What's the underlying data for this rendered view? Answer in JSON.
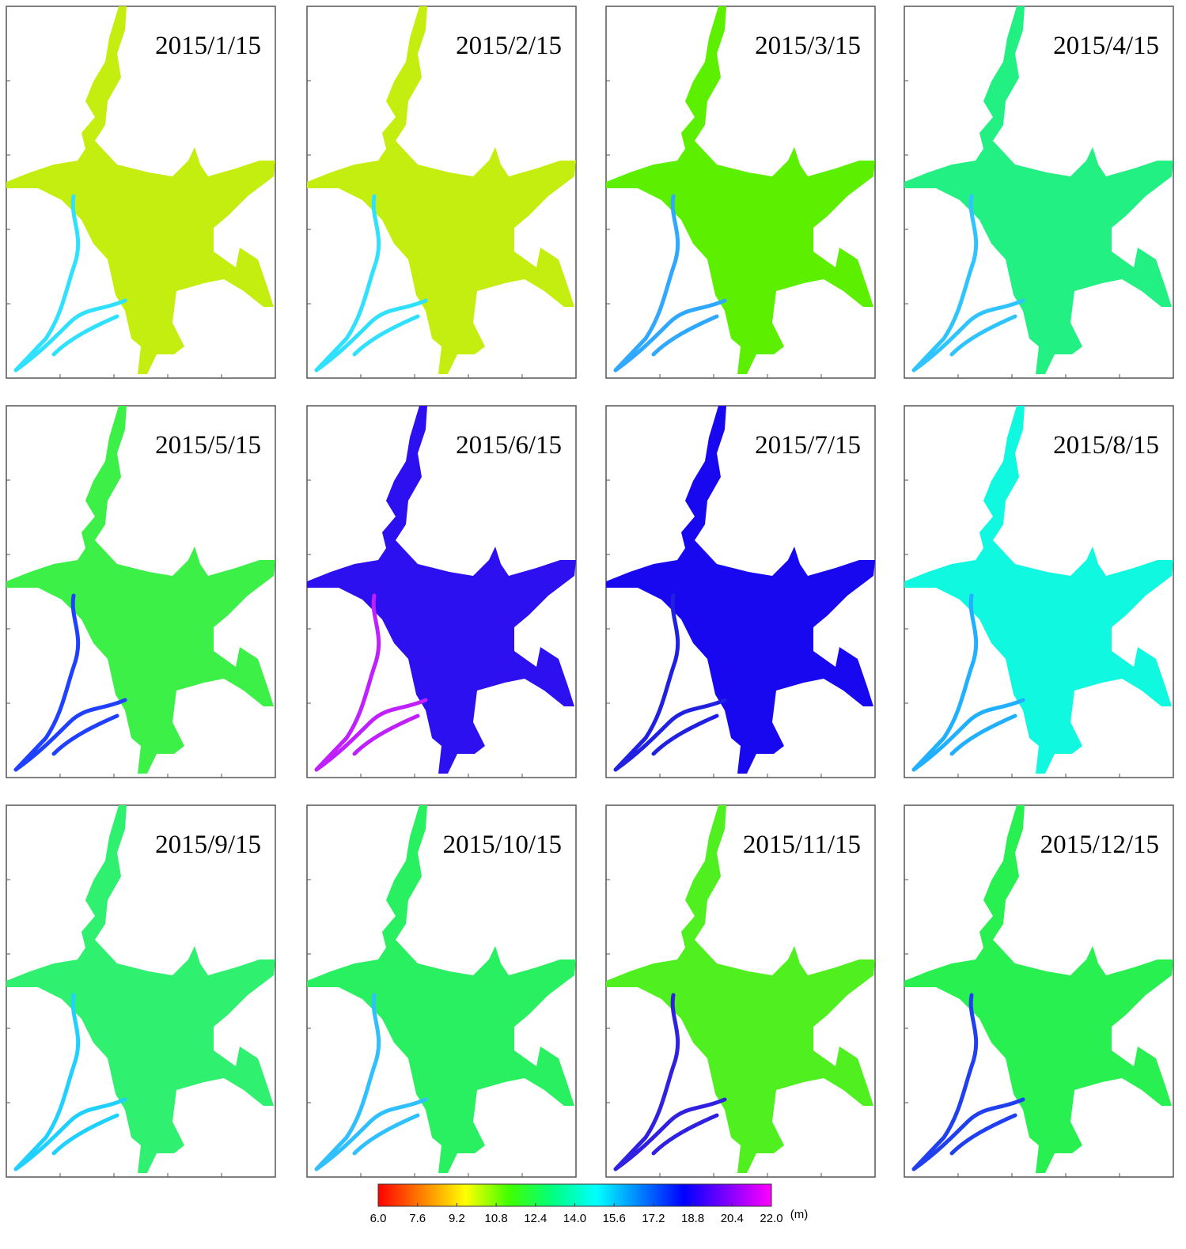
{
  "panels": [
    {
      "label": "2015/1/15",
      "body_color": "#c4ee10",
      "river_color": "#30e0ff"
    },
    {
      "label": "2015/2/15",
      "body_color": "#c4ee10",
      "river_color": "#30e0ff"
    },
    {
      "label": "2015/3/15",
      "body_color": "#5cf000",
      "river_color": "#30a8ff"
    },
    {
      "label": "2015/4/15",
      "body_color": "#22f082",
      "river_color": "#30c4ff"
    },
    {
      "label": "2015/5/15",
      "body_color": "#3cf048",
      "river_color": "#2040ff"
    },
    {
      "label": "2015/6/15",
      "body_color": "#2c10f0",
      "river_color": "#c020ff"
    },
    {
      "label": "2015/7/15",
      "body_color": "#1808f0",
      "river_color": "#2020e0"
    },
    {
      "label": "2015/8/15",
      "body_color": "#10f8e0",
      "river_color": "#20b0ff"
    },
    {
      "label": "2015/9/15",
      "body_color": "#30f070",
      "river_color": "#20d0ff"
    },
    {
      "label": "2015/10/15",
      "body_color": "#28f060",
      "river_color": "#30c0ff"
    },
    {
      "label": "2015/11/15",
      "body_color": "#50f020",
      "river_color": "#3020e0"
    },
    {
      "label": "2015/12/15",
      "body_color": "#28f050",
      "river_color": "#2040f0"
    }
  ],
  "colorbar": {
    "range": [
      6,
      22
    ],
    "ticks": [
      {
        "value": 6,
        "label": "6.0"
      },
      {
        "value": 7.6,
        "label": "7.6"
      },
      {
        "value": 9.2,
        "label": "9.2"
      },
      {
        "value": 10.8,
        "label": "10.8"
      },
      {
        "value": 12.4,
        "label": "12.4"
      },
      {
        "value": 14,
        "label": "14.0"
      },
      {
        "value": 15.6,
        "label": "15.6"
      },
      {
        "value": 17.2,
        "label": "17.2"
      },
      {
        "value": 18.8,
        "label": "18.8"
      },
      {
        "value": 20.4,
        "label": "20.4"
      },
      {
        "value": 22,
        "label": "22.0"
      }
    ],
    "unit": "(m)",
    "colors": [
      "#ff0000",
      "#ff8000",
      "#ffff00",
      "#40ff00",
      "#00ff80",
      "#00ffff",
      "#0080ff",
      "#0000ff",
      "#8000ff",
      "#ff00ff"
    ]
  }
}
